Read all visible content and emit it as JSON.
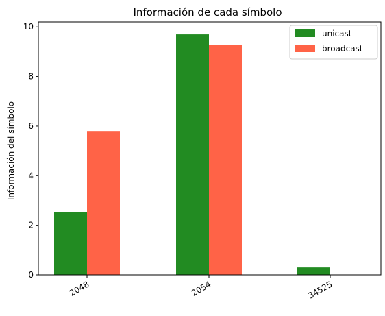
{
  "chart_data": {
    "type": "bar",
    "title": "Información de cada símbolo",
    "xlabel": "",
    "ylabel": "Información del símbolo",
    "categories": [
      "2048",
      "2054",
      "34525"
    ],
    "series": [
      {
        "name": "unicast",
        "color": "#228b22",
        "values": [
          2.54,
          9.7,
          0.3
        ]
      },
      {
        "name": "broadcast",
        "color": "#ff6347",
        "values": [
          5.8,
          9.27,
          0.0
        ]
      }
    ],
    "ylim": [
      0,
      10.2
    ],
    "yticks": [
      0,
      2,
      4,
      6,
      8,
      10
    ],
    "grid": false,
    "legend_position": "top-right",
    "xtick_rotation_deg": 30
  }
}
